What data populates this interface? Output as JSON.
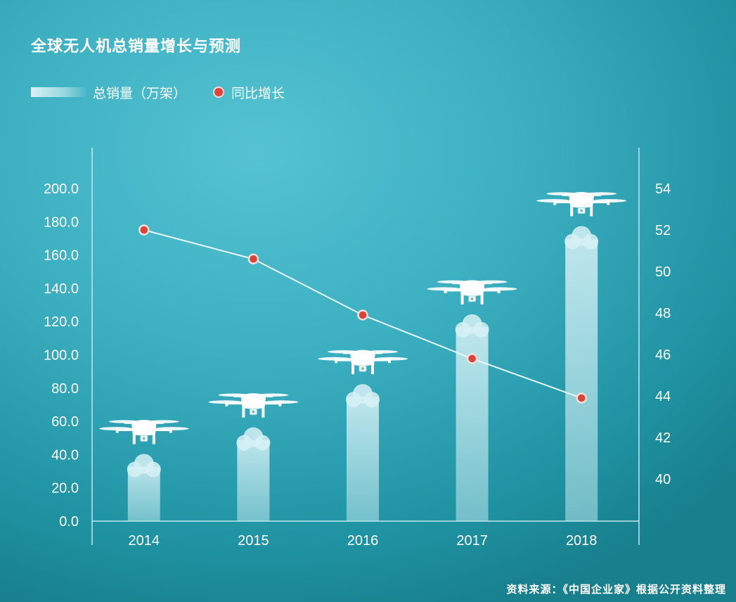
{
  "colors": {
    "bar": "#cfeef3",
    "line": "#e6f7fa",
    "dot_fill": "#d9443a",
    "dot_ring": "#f8ddd7",
    "axis": "#bfe8ee"
  },
  "icons": {
    "bar_top": "drone-icon"
  },
  "chart_data": {
    "type": "bar",
    "title": "全球无人机总销量增长与预测",
    "source": "资料来源：《中国企业家》根据公开资料整理",
    "categories": [
      "2014",
      "2015",
      "2016",
      "2017",
      "2018"
    ],
    "series": [
      {
        "name": "总销量（万架）",
        "type": "bar",
        "axis": "left",
        "values": [
          37,
          53,
          79,
          121,
          174
        ]
      },
      {
        "name": "同比增长",
        "type": "line",
        "axis": "right",
        "values": [
          52.0,
          50.6,
          47.9,
          45.8,
          43.9
        ]
      }
    ],
    "y_left": {
      "range": [
        0,
        200
      ],
      "ticks": [
        "0.0",
        "20.0",
        "40.0",
        "60.0",
        "80.0",
        "100.0",
        "120.0",
        "140.0",
        "160.0",
        "180.0",
        "200.0"
      ]
    },
    "y_right": {
      "range": [
        38,
        54
      ],
      "ticks": [
        "40",
        "42",
        "44",
        "46",
        "48",
        "50",
        "52",
        "54"
      ]
    },
    "grid": false,
    "legend": "top-left"
  }
}
